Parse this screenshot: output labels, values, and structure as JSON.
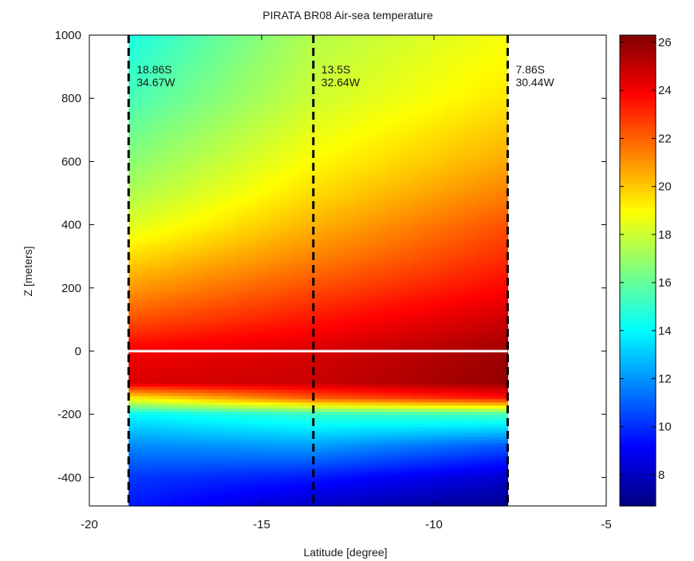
{
  "chart_data": {
    "type": "heatmap",
    "title": "PIRATA BR08 Air-sea temperature",
    "xlabel": "Latitude [degree]",
    "ylabel": "Z [meters]",
    "xlim": [
      -20,
      -5
    ],
    "ylim": [
      -490,
      1000
    ],
    "x_ticks": [
      -20,
      -15,
      -10,
      -5
    ],
    "y_ticks": [
      -400,
      -200,
      0,
      200,
      400,
      600,
      800,
      1000
    ],
    "data_extent": {
      "x": [
        -18.86,
        -7.86
      ],
      "z": [
        -490,
        1000
      ]
    },
    "surface_line_z": 0,
    "stations": [
      {
        "lat": -18.86,
        "label_lat": "18.86S",
        "label_lon": "34.67W"
      },
      {
        "lat": -13.5,
        "label_lat": "13.5S",
        "label_lon": "32.64W"
      },
      {
        "lat": -7.86,
        "label_lat": "7.86S",
        "label_lon": "30.44W"
      }
    ],
    "colorbar": {
      "range": [
        6.7,
        26.3
      ],
      "ticks": [
        8,
        10,
        12,
        14,
        16,
        18,
        20,
        22,
        24,
        26
      ],
      "colormap": "jet"
    },
    "grid": false,
    "field": {
      "z": [
        1000,
        800,
        600,
        500,
        400,
        300,
        200,
        100,
        0,
        -100,
        -150,
        -200,
        -300,
        -400,
        -490
      ],
      "lat": [
        -18.86,
        -13.5,
        -7.86
      ],
      "temperature": [
        [
          14.5,
          17.5,
          18.8
        ],
        [
          15.4,
          18.0,
          19.4
        ],
        [
          16.7,
          19.0,
          20.6
        ],
        [
          17.4,
          19.6,
          21.4
        ],
        [
          18.3,
          20.4,
          22.3
        ],
        [
          19.6,
          21.3,
          23.0
        ],
        [
          20.9,
          22.4,
          23.8
        ],
        [
          22.3,
          23.5,
          24.8
        ],
        [
          24.0,
          24.6,
          25.7
        ],
        [
          24.6,
          24.9,
          25.9
        ],
        [
          19.0,
          22.0,
          23.4
        ],
        [
          14.0,
          15.0,
          15.4
        ],
        [
          11.8,
          12.2,
          10.8
        ],
        [
          10.2,
          9.6,
          8.2
        ],
        [
          9.6,
          8.0,
          7.0
        ]
      ]
    }
  }
}
